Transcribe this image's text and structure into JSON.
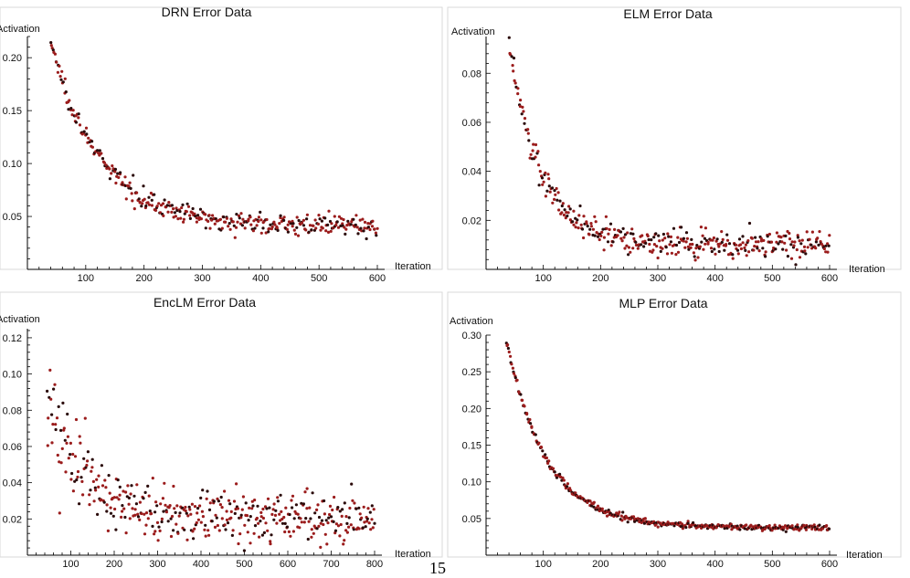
{
  "page_number": "15",
  "colors": {
    "frame": "#d9d9d9",
    "axis": "#000000",
    "point": "#9b1c1c",
    "point_dark": "#2a0a0a",
    "panel_bg": "#ffffff"
  },
  "chart_data": [
    {
      "id": "drn",
      "type": "scatter",
      "title": "DRN Error Data",
      "xlabel": "Iteration",
      "ylabel": "Activation",
      "xlim": [
        0,
        600
      ],
      "ylim": [
        0,
        0.22
      ],
      "xticks": [
        100,
        200,
        300,
        400,
        500,
        600
      ],
      "xtick_labels": [
        "100",
        "200",
        "300",
        "400",
        "500",
        "600"
      ],
      "yticks": [
        0.05,
        0.1,
        0.15,
        0.2
      ],
      "ytick_labels": [
        "0.05",
        "0.10",
        "0.15",
        "0.20"
      ],
      "series": [
        {
          "name": "DRN error",
          "x_start": 40,
          "x_end": 600,
          "count": 380,
          "y_start": 0.215,
          "y_end": 0.041,
          "decay": 85,
          "noise": 0.0045
        }
      ]
    },
    {
      "id": "elm",
      "type": "scatter",
      "title": "ELM Error Data",
      "xlabel": "Iteration",
      "ylabel": "Activation",
      "xlim": [
        0,
        600
      ],
      "ylim": [
        0,
        0.095
      ],
      "xticks": [
        100,
        200,
        300,
        400,
        500,
        600
      ],
      "xtick_labels": [
        "100",
        "200",
        "300",
        "400",
        "500",
        "600"
      ],
      "yticks": [
        0.02,
        0.04,
        0.06,
        0.08
      ],
      "ytick_labels": [
        "0.02",
        "0.04",
        "0.06",
        "0.08"
      ],
      "series": [
        {
          "name": "ELM error",
          "x_start": 40,
          "x_end": 600,
          "count": 380,
          "y_start": 0.093,
          "y_end": 0.01,
          "decay": 55,
          "noise": 0.0028
        }
      ]
    },
    {
      "id": "enclm",
      "type": "scatter",
      "title": "EncLM Error Data",
      "xlabel": "Iteration",
      "ylabel": "Activation",
      "xlim": [
        0,
        800
      ],
      "ylim": [
        0,
        0.125
      ],
      "xticks": [
        100,
        200,
        300,
        400,
        500,
        600,
        700,
        800
      ],
      "xtick_labels": [
        "100",
        "200",
        "300",
        "400",
        "500",
        "600",
        "700",
        "800"
      ],
      "yticks": [
        0.02,
        0.04,
        0.06,
        0.08,
        0.1,
        0.12
      ],
      "ytick_labels": [
        "0.02",
        "0.04",
        "0.06",
        "0.08",
        "0.10",
        "0.12"
      ],
      "series": [
        {
          "name": "EncLM error",
          "x_start": 45,
          "x_end": 800,
          "count": 430,
          "y_start": 0.085,
          "y_end": 0.021,
          "decay": 80,
          "noise": 0.011
        }
      ]
    },
    {
      "id": "mlp",
      "type": "scatter",
      "title": "MLP Error Data",
      "xlabel": "Iteration",
      "ylabel": "Activation",
      "xlim": [
        0,
        600
      ],
      "ylim": [
        0,
        0.3
      ],
      "xticks": [
        100,
        200,
        300,
        400,
        500,
        600
      ],
      "xtick_labels": [
        "100",
        "200",
        "300",
        "400",
        "500",
        "600"
      ],
      "yticks": [
        0.05,
        0.1,
        0.15,
        0.2,
        0.25,
        0.3
      ],
      "ytick_labels": [
        "0.05",
        "0.10",
        "0.15",
        "0.20",
        "0.25",
        "0.30"
      ],
      "series": [
        {
          "name": "MLP error",
          "x_start": 35,
          "x_end": 600,
          "count": 400,
          "y_start": 0.295,
          "y_end": 0.038,
          "decay": 70,
          "noise": 0.0022
        }
      ]
    }
  ]
}
